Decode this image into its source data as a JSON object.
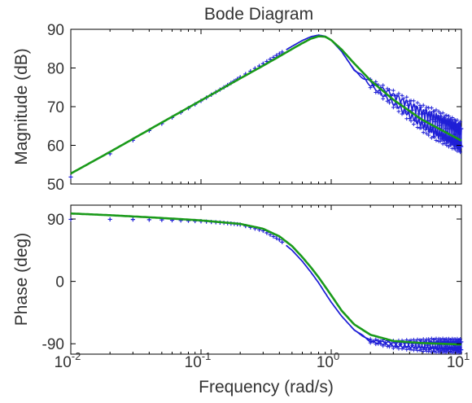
{
  "chart_data": {
    "type": "line",
    "title": "Bode Diagram",
    "xlabel": "Frequency (rad/s)",
    "x_scale": "log",
    "xlim": [
      0.01,
      10
    ],
    "x_ticks": [
      {
        "base": "10",
        "exp": "-2",
        "value": 0.01
      },
      {
        "base": "10",
        "exp": "-1",
        "value": 0.1
      },
      {
        "base": "10",
        "exp": "0",
        "value": 1
      },
      {
        "base": "10",
        "exp": "1",
        "value": 10
      }
    ],
    "colors": {
      "measured": "#1f1fd6",
      "model": "#1a9a1a"
    },
    "panels": [
      {
        "id": "magnitude",
        "ylabel": "Magnitude (dB)",
        "ylim": [
          50,
          90
        ],
        "yticks": [
          50,
          60,
          70,
          80,
          90
        ],
        "ytick_labels": [
          "50",
          "60",
          "70",
          "80",
          "90"
        ],
        "measured": {
          "x": [
            0.01,
            0.02,
            0.03,
            0.04,
            0.05,
            0.06,
            0.07,
            0.08,
            0.1,
            0.15,
            0.2,
            0.3,
            0.4,
            0.5,
            0.6,
            0.7,
            0.8,
            0.9,
            1.0,
            1.2,
            1.5,
            2.0,
            3.0,
            5.0,
            10.0
          ],
          "y": [
            51.8,
            57.8,
            61.3,
            63.8,
            65.6,
            67.2,
            68.5,
            69.6,
            71.5,
            75.0,
            77.6,
            81.1,
            83.7,
            85.6,
            87.1,
            88.1,
            88.5,
            88.2,
            87.2,
            84.3,
            79.5,
            76.0,
            72.0,
            67.0,
            62.0
          ]
        },
        "model": {
          "x": [
            0.01,
            0.02,
            0.05,
            0.1,
            0.2,
            0.3,
            0.4,
            0.5,
            0.6,
            0.7,
            0.8,
            0.9,
            1.0,
            1.2,
            1.5,
            2.0,
            3.0,
            5.0,
            10.0
          ],
          "y": [
            52.7,
            58.3,
            65.9,
            71.6,
            77.3,
            80.6,
            83.0,
            84.9,
            86.4,
            87.6,
            88.2,
            88.1,
            87.2,
            84.8,
            81.2,
            76.8,
            71.8,
            66.6,
            61.2
          ]
        }
      },
      {
        "id": "phase",
        "ylabel": "Phase (deg)",
        "ylim": [
          -105,
          110
        ],
        "yticks": [
          -90,
          0,
          90
        ],
        "ytick_labels": [
          "-90",
          "0",
          "90"
        ],
        "measured": {
          "x": [
            0.01,
            0.02,
            0.03,
            0.04,
            0.05,
            0.07,
            0.1,
            0.15,
            0.2,
            0.3,
            0.4,
            0.5,
            0.6,
            0.7,
            0.8,
            0.9,
            1.0,
            1.2,
            1.5,
            2.0,
            3.0,
            5.0,
            10.0
          ],
          "y": [
            89.5,
            89.5,
            89.3,
            89.0,
            88.7,
            87.9,
            86.8,
            84.5,
            82.0,
            73.0,
            60.0,
            45.0,
            29.0,
            13.0,
            -2.0,
            -17.0,
            -30.0,
            -50.0,
            -70.0,
            -86.0,
            -91.0,
            -92.0,
            -93.0
          ]
        },
        "model": {
          "x": [
            0.01,
            0.02,
            0.05,
            0.1,
            0.2,
            0.3,
            0.4,
            0.5,
            0.6,
            0.7,
            0.8,
            1.0,
            1.2,
            1.5,
            2.0,
            3.0,
            5.0,
            10.0
          ],
          "y": [
            98.0,
            95.5,
            91.5,
            88.0,
            83.0,
            76.0,
            65.0,
            51.0,
            35.0,
            20.0,
            6.0,
            -20.0,
            -42.0,
            -62.0,
            -77.0,
            -86.0,
            -89.0,
            -91.0
          ]
        }
      }
    ]
  }
}
